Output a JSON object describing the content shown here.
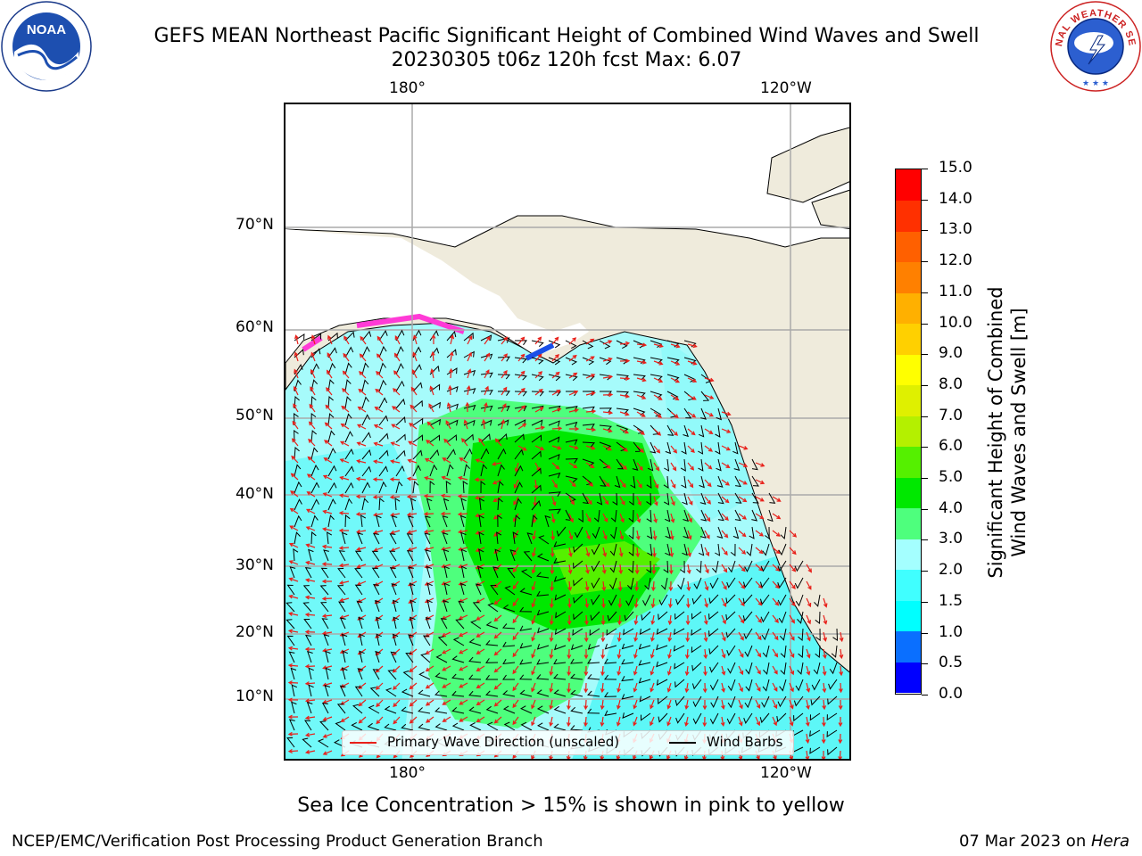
{
  "title_line1": "GEFS MEAN Northeast Pacific Significant Height of Combined Wind Waves and Swell",
  "title_line2": "20230305 t06z 120h fcst   Max: 6.07",
  "logos": {
    "left": "noaa-logo",
    "right": "national-weather-service-logo",
    "right_text": "NATIONAL WEATHER SERVICE"
  },
  "map": {
    "top_lon_labels": [
      "180°",
      "120°W"
    ],
    "bottom_lon_labels": [
      "180°",
      "120°W"
    ],
    "lat_labels": [
      "70°N",
      "60°N",
      "50°N",
      "40°N",
      "30°N",
      "20°N",
      "10°N"
    ],
    "land_color": "#efebdc",
    "arrow_color": "#e8201a",
    "barb_color": "#000000"
  },
  "legend": {
    "wave_direction": "Primary Wave Direction (unscaled)",
    "wind_barbs": "Wind Barbs"
  },
  "colorbar": {
    "label_line1": "Significant Height of Combined",
    "label_line2": "Wind Waves and Swell [m]",
    "ticks": [
      "0.0",
      "0.5",
      "1.0",
      "1.5",
      "2.0",
      "3.0",
      "4.0",
      "5.0",
      "6.0",
      "7.0",
      "8.0",
      "9.0",
      "10.0",
      "11.0",
      "12.0",
      "13.0",
      "14.0",
      "15.0"
    ],
    "colors": [
      "#0000ff",
      "#0a6fff",
      "#00ffff",
      "#40ffff",
      "#a4ffff",
      "#4eff7d",
      "#00e800",
      "#55f000",
      "#b4f000",
      "#dff000",
      "#ffff00",
      "#ffd000",
      "#ffb000",
      "#ff8000",
      "#ff6000",
      "#ff3000",
      "#ff0000"
    ]
  },
  "footnote": "Sea Ice Concentration > 15% is shown in pink to yellow",
  "footer_left": "NCEP/EMC/Verification Post Processing Product Generation Branch",
  "footer_right_date": "07 Mar 2023 on ",
  "footer_right_host": "Hera"
}
